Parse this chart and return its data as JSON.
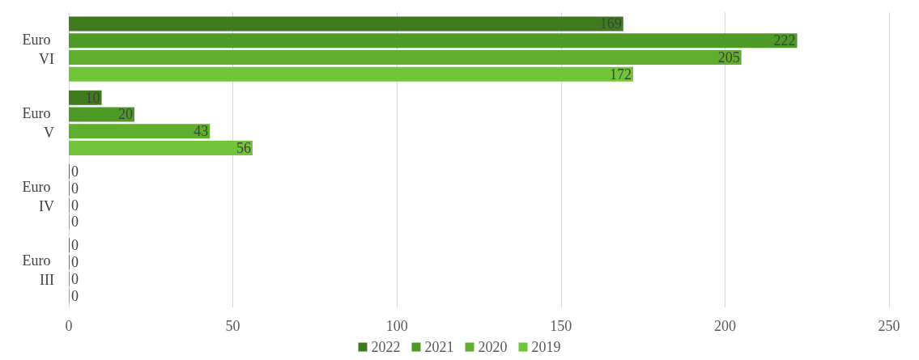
{
  "chart_data": {
    "type": "bar",
    "orientation": "horizontal",
    "categories": [
      "Euro VI",
      "Euro V",
      "Euro IV",
      "Euro III"
    ],
    "series": [
      {
        "name": "2022",
        "color": "#3f7a1f",
        "values": [
          169,
          10,
          0,
          0
        ]
      },
      {
        "name": "2021",
        "color": "#4e9a26",
        "values": [
          222,
          20,
          0,
          0
        ]
      },
      {
        "name": "2020",
        "color": "#5fae2e",
        "values": [
          205,
          43,
          0,
          0
        ]
      },
      {
        "name": "2019",
        "color": "#72c43a",
        "values": [
          172,
          56,
          0,
          0
        ]
      }
    ],
    "xlim": [
      0,
      250
    ],
    "xticks": [
      0,
      50,
      100,
      150,
      200,
      250
    ],
    "grid": "x",
    "legend": "bottom",
    "data_labels": true
  }
}
